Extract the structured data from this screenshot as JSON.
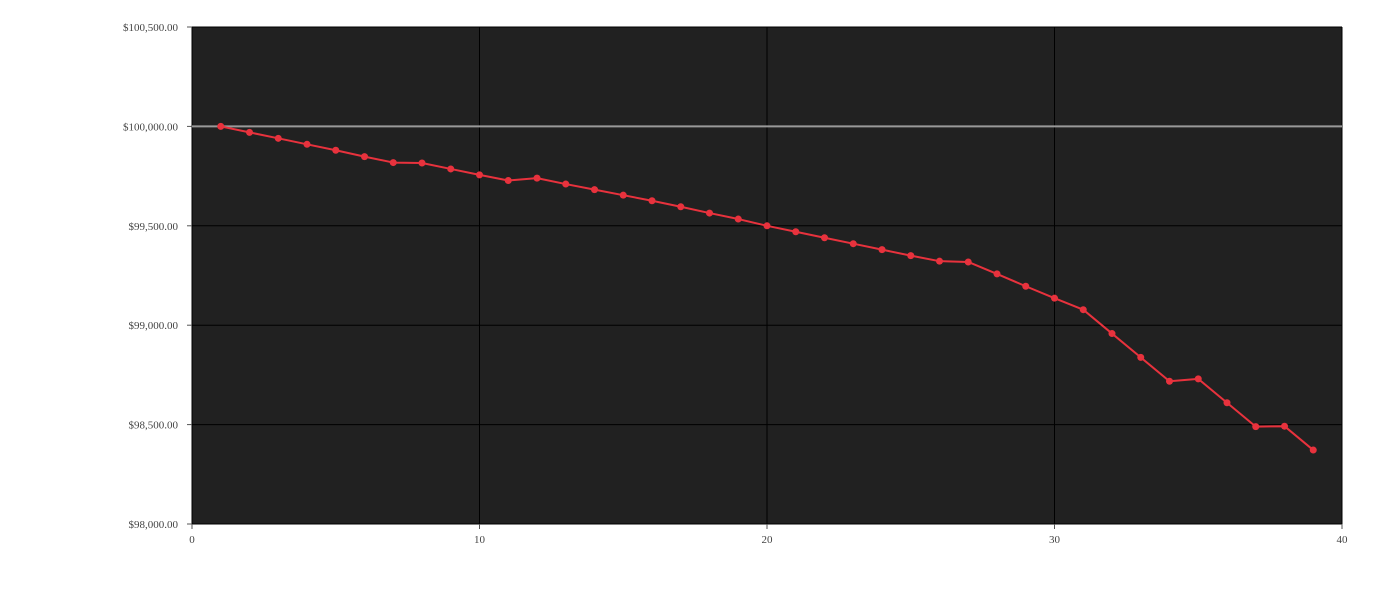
{
  "chart_data": {
    "type": "line",
    "title": "",
    "xlabel": "",
    "ylabel": "",
    "xlim": [
      0,
      40
    ],
    "ylim": [
      98000,
      100500
    ],
    "x_ticks": [
      0,
      10,
      20,
      30,
      40
    ],
    "x_tick_labels": [
      "0",
      "10",
      "20",
      "30",
      "40"
    ],
    "y_ticks": [
      98000,
      98500,
      99000,
      99500,
      100000,
      100500
    ],
    "y_tick_labels": [
      "$98,000.00",
      "$98,500.00",
      "$99,000.00",
      "$99,500.00",
      "$100,000.00",
      "$100,500.00"
    ],
    "grid": true,
    "reference_line": 100000,
    "series": [
      {
        "x": [
          1,
          2,
          3,
          4,
          5,
          6,
          7,
          8,
          9,
          10,
          11,
          12,
          13,
          14,
          15,
          16,
          17,
          18,
          19,
          20,
          21,
          22,
          23,
          24,
          25,
          26,
          27,
          28,
          29,
          30,
          31,
          32,
          33,
          34,
          35,
          36,
          37,
          38,
          39
        ],
        "values": [
          100000,
          99970,
          99940,
          99910,
          99880,
          99848,
          99818,
          99816,
          99786,
          99756,
          99728,
          99740,
          99710,
          99682,
          99654,
          99626,
          99596,
          99564,
          99534,
          99500,
          99470,
          99440,
          99410,
          99380,
          99350,
          99322,
          99318,
          99258,
          99196,
          99136,
          99078,
          98958,
          98838,
          98718,
          98730,
          98610,
          98490,
          98492,
          98372
        ],
        "color": "#e8323d"
      }
    ],
    "colors": {
      "plot_background": "#212121",
      "grid": "#000000",
      "reference_line": "#999999",
      "series": "#e8323d"
    }
  }
}
